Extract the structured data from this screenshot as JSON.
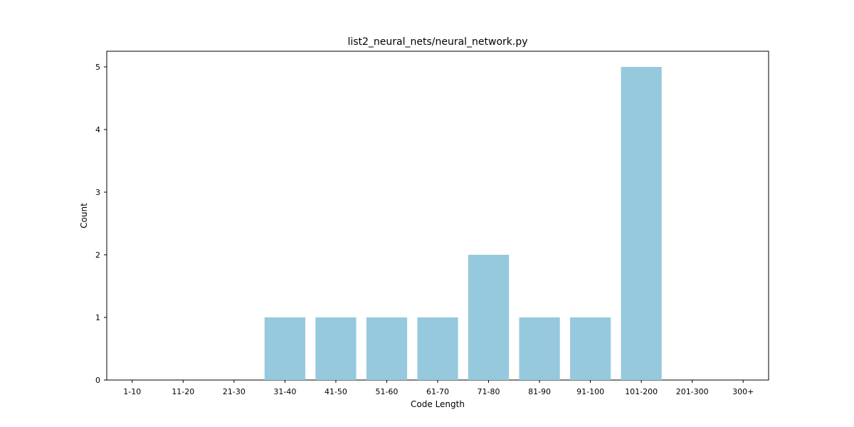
{
  "chart_data": {
    "type": "bar",
    "title": "list2_neural_nets/neural_network.py",
    "xlabel": "Code Length",
    "ylabel": "Count",
    "categories": [
      "1-10",
      "11-20",
      "21-30",
      "31-40",
      "41-50",
      "51-60",
      "61-70",
      "71-80",
      "81-90",
      "91-100",
      "101-200",
      "201-300",
      "300+"
    ],
    "values": [
      0,
      0,
      0,
      1,
      1,
      1,
      1,
      2,
      1,
      1,
      5,
      0,
      0
    ],
    "ylim": [
      0,
      5.25
    ],
    "yticks": [
      0,
      1,
      2,
      3,
      4,
      5
    ],
    "bar_color": "#96c9dd",
    "grid": false,
    "legend": "none"
  }
}
